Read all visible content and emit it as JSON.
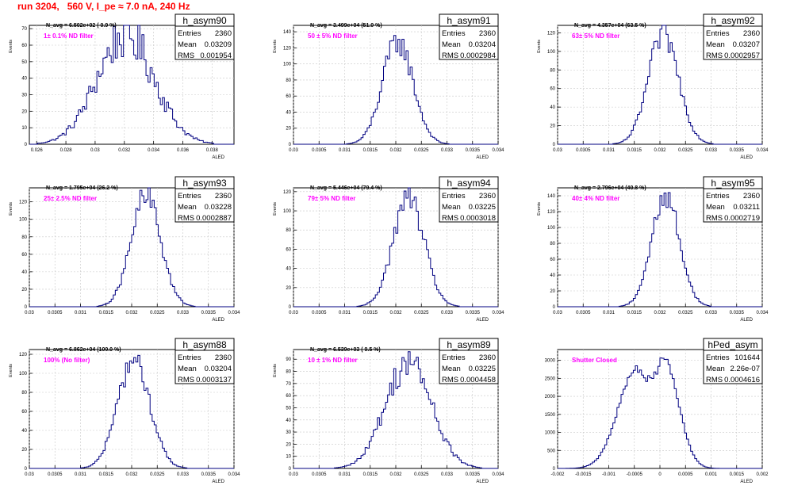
{
  "run_title": "run 3204,   560 V, I_pe ≈ 7.0 nA, 240 Hz",
  "colors": {
    "line": "#000080",
    "annotation": "#ff00ff",
    "title": "#ff0000",
    "grid": "#c8c8c8"
  },
  "chart_data": [
    {
      "type": "histogram",
      "name": "h_asym90",
      "navg_label": "N_avg = 6.502e+02 ( 0.9 %)",
      "filter_label": "1± 0.1% ND filter",
      "stats": {
        "entries": "2360",
        "mean": "0.03209",
        "rms": "0.001954"
      },
      "xlabel": "A_LED",
      "ylabel": "Events",
      "xlim": [
        0.0255,
        0.0395
      ],
      "ylim": [
        0,
        72
      ],
      "xticks": [
        0.026,
        0.028,
        0.03,
        0.032,
        0.034,
        0.036,
        0.038
      ],
      "xtick_labels": [
        "0.026",
        "0.028",
        "0.03",
        "0.032",
        "0.034",
        "0.036",
        "0.038"
      ],
      "yticks": [
        0,
        10,
        20,
        30,
        40,
        50,
        60,
        70
      ],
      "shape": {
        "kind": "gauss",
        "mean": 0.03209,
        "rms": 0.001954,
        "peak": 66,
        "noise": 0.22,
        "bins": 100
      }
    },
    {
      "type": "histogram",
      "name": "h_asym91",
      "navg_label": "N_avg = 3.499e+04 (51.0 %)",
      "filter_label": "50 ± 5% ND filter",
      "stats": {
        "entries": "2360",
        "mean": "0.03204",
        "rms": "0.0002984"
      },
      "xlabel": "A_LED",
      "ylabel": "Events",
      "xlim": [
        0.03,
        0.034
      ],
      "ylim": [
        0,
        148
      ],
      "xticks": [
        0.03,
        0.0305,
        0.031,
        0.0315,
        0.032,
        0.0325,
        0.033,
        0.0335,
        0.034
      ],
      "xtick_labels": [
        "0.03",
        "0.0305",
        "0.031",
        "0.0315",
        "0.032",
        "0.0325",
        "0.033",
        "0.0335",
        "0.034"
      ],
      "yticks": [
        0,
        20,
        40,
        60,
        80,
        100,
        120,
        140
      ],
      "shape": {
        "kind": "gauss",
        "mean": 0.03204,
        "rms": 0.0002984,
        "peak": 128,
        "noise": 0.13,
        "bins": 100
      }
    },
    {
      "type": "histogram",
      "name": "h_asym92",
      "navg_label": "N_avg = 4.357e+04 (63.5 %)",
      "filter_label": "63± 5% ND filter",
      "stats": {
        "entries": "2360",
        "mean": "0.03207",
        "rms": "0.0002957"
      },
      "xlabel": "A_LED",
      "ylabel": "Events",
      "xlim": [
        0.03,
        0.034
      ],
      "ylim": [
        0,
        128
      ],
      "xticks": [
        0.03,
        0.0305,
        0.031,
        0.0315,
        0.032,
        0.0325,
        0.033,
        0.0335,
        0.034
      ],
      "xtick_labels": [
        "0.03",
        "0.0305",
        "0.031",
        "0.0315",
        "0.032",
        "0.0325",
        "0.033",
        "0.0335",
        "0.034"
      ],
      "yticks": [
        0,
        20,
        40,
        60,
        80,
        100,
        120
      ],
      "shape": {
        "kind": "gauss",
        "mean": 0.03207,
        "rms": 0.0002957,
        "peak": 118,
        "noise": 0.12,
        "bins": 100
      }
    },
    {
      "type": "histogram",
      "name": "h_asym93",
      "navg_label": "N_avg = 1.795e+04 (26.2 %)",
      "filter_label": "25± 2.5% ND filter",
      "stats": {
        "entries": "2360",
        "mean": "0.03228",
        "rms": "0.0002887"
      },
      "xlabel": "A_LED",
      "ylabel": "Events",
      "xlim": [
        0.03,
        0.034
      ],
      "ylim": [
        0,
        136
      ],
      "xticks": [
        0.03,
        0.0305,
        0.031,
        0.0315,
        0.032,
        0.0325,
        0.033,
        0.0335,
        0.034
      ],
      "xtick_labels": [
        "0.03",
        "0.0305",
        "0.031",
        "0.0315",
        "0.032",
        "0.0325",
        "0.033",
        "0.0335",
        "0.034"
      ],
      "yticks": [
        0,
        20,
        40,
        60,
        80,
        100,
        120
      ],
      "shape": {
        "kind": "gauss",
        "mean": 0.03228,
        "rms": 0.0002887,
        "peak": 126,
        "noise": 0.13,
        "bins": 100
      }
    },
    {
      "type": "histogram",
      "name": "h_asym94",
      "navg_label": "N_avg = 5.446e+04 (79.4 %)",
      "filter_label": "79± 5% ND filter",
      "stats": {
        "entries": "2360",
        "mean": "0.03225",
        "rms": "0.0003018"
      },
      "xlabel": "A_LED",
      "ylabel": "Events",
      "xlim": [
        0.03,
        0.034
      ],
      "ylim": [
        0,
        124
      ],
      "xticks": [
        0.03,
        0.0305,
        0.031,
        0.0315,
        0.032,
        0.0325,
        0.033,
        0.0335,
        0.034
      ],
      "xtick_labels": [
        "0.03",
        "0.0305",
        "0.031",
        "0.0315",
        "0.032",
        "0.0325",
        "0.033",
        "0.0335",
        "0.034"
      ],
      "yticks": [
        0,
        20,
        40,
        60,
        80,
        100,
        120
      ],
      "shape": {
        "kind": "gauss",
        "mean": 0.03225,
        "rms": 0.0003018,
        "peak": 114,
        "noise": 0.12,
        "bins": 100
      }
    },
    {
      "type": "histogram",
      "name": "h_asym95",
      "navg_label": "N_avg = 2.796e+04 (40.8 %)",
      "filter_label": "40± 4% ND filter",
      "stats": {
        "entries": "2360",
        "mean": "0.03211",
        "rms": "0.0002719"
      },
      "xlabel": "A_LED",
      "ylabel": "Events",
      "xlim": [
        0.03,
        0.034
      ],
      "ylim": [
        0,
        150
      ],
      "xticks": [
        0.03,
        0.0305,
        0.031,
        0.0315,
        0.032,
        0.0325,
        0.033,
        0.0335,
        0.034
      ],
      "xtick_labels": [
        "0.03",
        "0.0305",
        "0.031",
        "0.0315",
        "0.032",
        "0.0325",
        "0.033",
        "0.0335",
        "0.034"
      ],
      "yticks": [
        0,
        20,
        40,
        60,
        80,
        100,
        120,
        140
      ],
      "shape": {
        "kind": "gauss",
        "mean": 0.03211,
        "rms": 0.0002719,
        "peak": 140,
        "noise": 0.12,
        "bins": 100
      }
    },
    {
      "type": "histogram",
      "name": "h_asym88",
      "navg_label": "N_avg = 6.862e+04 (100.0 %)",
      "filter_label": "100% (No filter)",
      "stats": {
        "entries": "2360",
        "mean": "0.03204",
        "rms": "0.0003137"
      },
      "xlabel": "A_LED",
      "ylabel": "Events",
      "xlim": [
        0.03,
        0.034
      ],
      "ylim": [
        0,
        125
      ],
      "xticks": [
        0.03,
        0.0305,
        0.031,
        0.0315,
        0.032,
        0.0325,
        0.033,
        0.0335,
        0.034
      ],
      "xtick_labels": [
        "0.03",
        "0.0305",
        "0.031",
        "0.0315",
        "0.032",
        "0.0325",
        "0.033",
        "0.0335",
        "0.034"
      ],
      "yticks": [
        0,
        20,
        40,
        60,
        80,
        100,
        120
      ],
      "shape": {
        "kind": "gauss",
        "mean": 0.03204,
        "rms": 0.0003137,
        "peak": 114,
        "noise": 0.12,
        "bins": 100
      }
    },
    {
      "type": "histogram",
      "name": "h_asym89",
      "navg_label": "N_avg = 6.539e+03 ( 9.5 %)",
      "filter_label": "10 ± 1% ND filter",
      "stats": {
        "entries": "2360",
        "mean": "0.03225",
        "rms": "0.0004458"
      },
      "xlabel": "A_LED",
      "ylabel": "Events",
      "xlim": [
        0.03,
        0.034
      ],
      "ylim": [
        0,
        98
      ],
      "xticks": [
        0.03,
        0.0305,
        0.031,
        0.0315,
        0.032,
        0.0325,
        0.033,
        0.0335,
        0.034
      ],
      "xtick_labels": [
        "0.03",
        "0.0305",
        "0.031",
        "0.0315",
        "0.032",
        "0.0325",
        "0.033",
        "0.0335",
        "0.034"
      ],
      "yticks": [
        0,
        10,
        20,
        30,
        40,
        50,
        60,
        70,
        80,
        90
      ],
      "shape": {
        "kind": "gauss",
        "mean": 0.03225,
        "rms": 0.0004458,
        "peak": 88,
        "noise": 0.16,
        "bins": 100
      }
    },
    {
      "type": "histogram",
      "name": "hPed_asym",
      "navg_label": "",
      "filter_label": "Shutter Closed",
      "stats": {
        "entries": "101644",
        "mean": "2.26e-07",
        "rms": "0.0004616"
      },
      "xlabel": "A_LED",
      "ylabel": "",
      "xlim": [
        -0.002,
        0.002
      ],
      "ylim": [
        0,
        3300
      ],
      "xticks": [
        -0.002,
        -0.0015,
        -0.001,
        -0.0005,
        0,
        0.0005,
        0.001,
        0.0015,
        0.002
      ],
      "xtick_labels": [
        "-0.002",
        "-0.0015",
        "-0.001",
        "-0.0005",
        "0",
        "0.0005",
        "0.001",
        "0.0015",
        "0.002"
      ],
      "yticks": [
        0,
        500,
        1000,
        1500,
        2000,
        2500,
        3000
      ],
      "shape": {
        "kind": "double",
        "mean": 0.0,
        "rms": 0.0004616,
        "peak": 3150,
        "noise": 0.04,
        "bins": 100
      }
    }
  ]
}
